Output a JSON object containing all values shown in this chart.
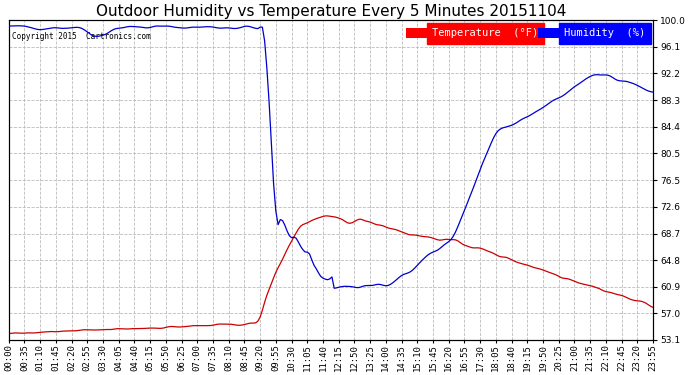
{
  "title": "Outdoor Humidity vs Temperature Every 5 Minutes 20151104",
  "copyright_text": "Copyright 2015  Cartronics.com",
  "legend_temp_label": "Temperature  (°F)",
  "legend_hum_label": "Humidity  (%)",
  "temp_color": "#cc0000",
  "hum_color": "#0000cc",
  "background_color": "white",
  "grid_color": "#bbbbbb",
  "ylim": [
    53.1,
    100.0
  ],
  "yticks": [
    53.1,
    57.0,
    60.9,
    64.8,
    68.7,
    72.6,
    76.5,
    80.5,
    84.4,
    88.3,
    92.2,
    96.1,
    100.0
  ],
  "title_fontsize": 11,
  "tick_fontsize": 6.5,
  "legend_fontsize": 7.5,
  "figsize": [
    6.9,
    3.75
  ],
  "dpi": 100
}
